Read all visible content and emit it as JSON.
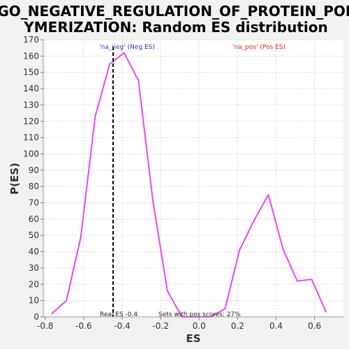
{
  "chart_data": {
    "type": "line",
    "title_line1": "GO_NEGATIVE_REGULATION_OF_PROTEIN_POL",
    "title_line2": "YMERIZATION: Random ES distribution",
    "xlabel": "ES",
    "ylabel": "P(ES)",
    "xlim": [
      -0.81,
      0.75
    ],
    "ylim": [
      0,
      170
    ],
    "x_ticks": [
      -0.8,
      -0.6,
      -0.4,
      -0.2,
      0.0,
      0.2,
      0.4,
      0.6
    ],
    "x_tick_labels": [
      "-0.8",
      "-0.6",
      "-0.4",
      "-0.2",
      "0.0",
      "0.2",
      "0.4",
      "0.6"
    ],
    "y_ticks": [
      0,
      10,
      20,
      30,
      40,
      50,
      60,
      70,
      80,
      90,
      100,
      110,
      120,
      130,
      140,
      150,
      160,
      170
    ],
    "y_tick_labels": [
      "0",
      "10",
      "20",
      "30",
      "40",
      "50",
      "60",
      "70",
      "80",
      "90",
      "100",
      "110",
      "120",
      "130",
      "140",
      "150",
      "160",
      "170"
    ],
    "grid": true,
    "series": [
      {
        "color": "#ee44ee",
        "x": [
          -0.765,
          -0.69,
          -0.615,
          -0.54,
          -0.465,
          -0.39,
          -0.315,
          -0.24,
          -0.165,
          -0.09,
          -0.015,
          0.06,
          0.135,
          0.21,
          0.285,
          0.36,
          0.435,
          0.51,
          0.585,
          0.66
        ],
        "y": [
          2,
          10,
          49,
          123,
          155,
          162,
          145,
          71,
          16,
          0,
          0,
          0,
          5,
          41,
          59,
          75,
          42,
          22,
          23,
          3
        ]
      }
    ],
    "real_es": -0.447,
    "real_es_label": "Real ES -0.4",
    "pos_scores_label": "Sets with pos scores: 27%",
    "neg_label": "'na_neg' (Neg ES)",
    "pos_label": "'na_pos' (Pos ES)",
    "colors": {
      "neg": "#3333cc",
      "pos": "#dd2222",
      "line": "#ee44ee",
      "plot_bg": "#ffffff",
      "grid": "#d9d9d9"
    }
  }
}
